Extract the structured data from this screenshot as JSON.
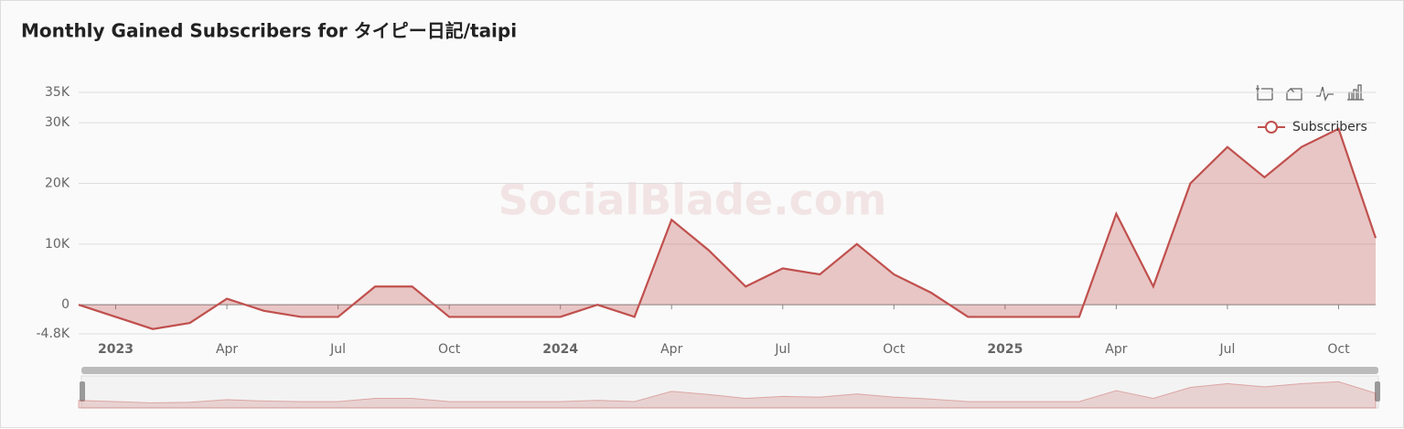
{
  "chart_data": {
    "type": "line",
    "title": "Monthly Gained Subscribers for タイピー日記/taipi",
    "watermark": "SocialBlade.com",
    "categories": [
      null,
      "2023",
      null,
      null,
      "Apr",
      null,
      null,
      "Jul",
      null,
      null,
      "Oct",
      null,
      null,
      "2024",
      null,
      null,
      "Apr",
      null,
      null,
      "Jul",
      null,
      null,
      "Oct",
      null,
      null,
      "2025",
      null,
      null,
      "Apr",
      null,
      null,
      "Jul",
      null,
      null,
      "Oct",
      null
    ],
    "series": [
      {
        "name": "Subscribers",
        "color": "#c0504d",
        "values": [
          0,
          -2000,
          -4000,
          -3000,
          1000,
          -1000,
          -2000,
          -2000,
          3000,
          3000,
          -2000,
          -2000,
          -2000,
          -2000,
          0,
          -2000,
          14000,
          9000,
          3000,
          6000,
          5000,
          10000,
          5000,
          2000,
          -2000,
          -2000,
          -2000,
          -2000,
          15000,
          3000,
          20000,
          26000,
          21000,
          26000,
          29000,
          11000
        ]
      }
    ],
    "ylim": [
      -4800,
      35000
    ],
    "yticks": [
      {
        "value": -4800,
        "label": "-4.8K"
      },
      0,
      {
        "value": 10000,
        "label": "10K"
      },
      {
        "value": 20000,
        "label": "20K"
      },
      {
        "value": 30000,
        "label": "30K"
      },
      {
        "value": 35000,
        "label": "35K"
      }
    ],
    "grid": true,
    "legend": "top-right"
  }
}
